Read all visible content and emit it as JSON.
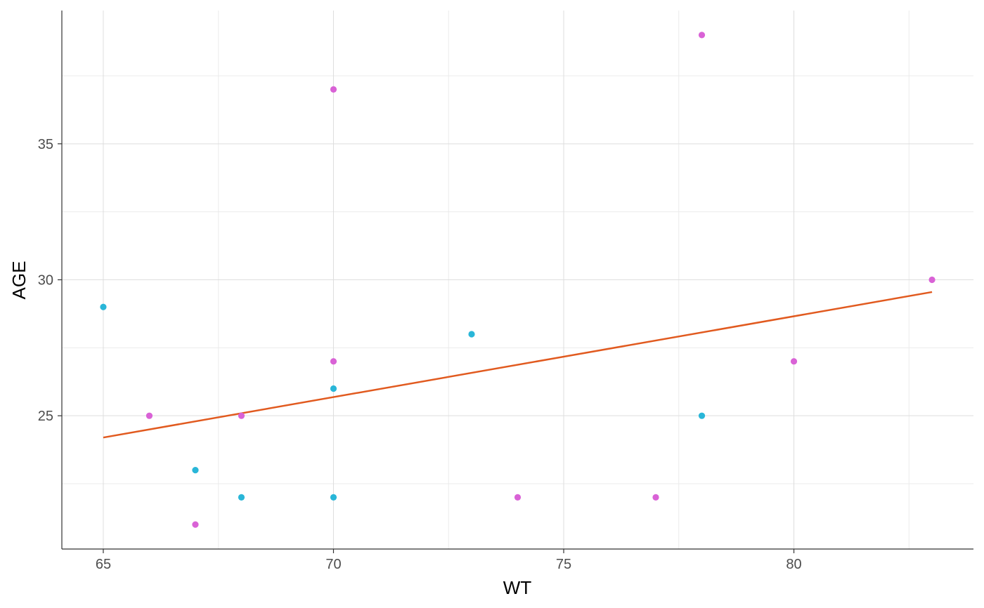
{
  "chart_data": {
    "type": "scatter",
    "xlabel": "WT",
    "ylabel": "AGE",
    "xlim": [
      64.1,
      83.9
    ],
    "ylim": [
      20.1,
      39.9
    ],
    "x_ticks": [
      65,
      70,
      75,
      80
    ],
    "y_ticks": [
      25,
      30,
      35
    ],
    "x_tick_labels": [
      "65",
      "70",
      "75",
      "80"
    ],
    "y_tick_labels": [
      "25",
      "30",
      "35"
    ],
    "grid": true,
    "legend": "none",
    "series": [
      {
        "color": "#29b6d8",
        "points": [
          {
            "x": 65,
            "y": 29
          },
          {
            "x": 67,
            "y": 23
          },
          {
            "x": 68,
            "y": 22
          },
          {
            "x": 70,
            "y": 26
          },
          {
            "x": 70,
            "y": 22
          },
          {
            "x": 73,
            "y": 28
          },
          {
            "x": 78,
            "y": 25
          }
        ]
      },
      {
        "color": "#d962d6",
        "points": [
          {
            "x": 66,
            "y": 25
          },
          {
            "x": 67,
            "y": 21
          },
          {
            "x": 68,
            "y": 25
          },
          {
            "x": 70,
            "y": 37
          },
          {
            "x": 70,
            "y": 27
          },
          {
            "x": 74,
            "y": 22
          },
          {
            "x": 77,
            "y": 22
          },
          {
            "x": 78,
            "y": 39
          },
          {
            "x": 80,
            "y": 27
          },
          {
            "x": 83,
            "y": 30
          }
        ]
      }
    ],
    "trend_line": {
      "color": "#e15a1f",
      "points": [
        {
          "x": 65,
          "y": 24.2
        },
        {
          "x": 83,
          "y": 29.55
        }
      ]
    }
  }
}
